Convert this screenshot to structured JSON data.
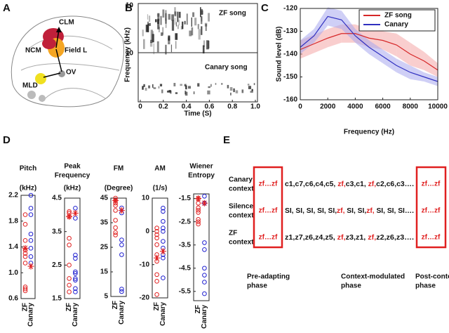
{
  "panel_labels": [
    "A",
    "B",
    "C",
    "D",
    "E"
  ],
  "anatomy": {
    "labels": [
      "CLM",
      "NCM",
      "Field L",
      "OV",
      "MLD"
    ]
  },
  "spectrogram": {
    "ylabel": "Frequency (kHz)",
    "xlabel": "Time (S)",
    "y_tick_labels": [
      "10",
      "10"
    ],
    "xlim": [
      0,
      1
    ],
    "xticks": [
      0,
      0.2,
      0.4,
      0.6,
      0.8,
      {
        "value": 1,
        "label": "1.0"
      }
    ],
    "annotations": [
      "ZF song",
      "Canary song"
    ]
  },
  "chart_data": [
    {
      "type": "line",
      "xlabel": "Frequency (Hz)",
      "ylabel": "Sound level (dB)",
      "x": [
        0,
        1000,
        2000,
        3000,
        4000,
        5000,
        6000,
        7000,
        8000,
        9000,
        10000
      ],
      "xlim": [
        0,
        10000
      ],
      "xticks": [
        0,
        2000,
        4000,
        6000,
        8000,
        10000
      ],
      "ylim": [
        -160,
        -120
      ],
      "yticks": [
        -160,
        -150,
        -140,
        -130,
        -120
      ],
      "legend": "upper right",
      "series": [
        {
          "name": "ZF song",
          "color": "#d62728",
          "band_color": "#f4a6a6",
          "values": [
            -138,
            -135.5,
            -133,
            -131,
            -131,
            -133,
            -134,
            -136,
            -140,
            -143,
            -147
          ],
          "error": [
            4,
            4,
            4,
            4,
            4,
            4,
            4,
            5,
            5,
            4,
            3
          ]
        },
        {
          "name": "Canary",
          "color": "#3030c0",
          "band_color": "#a8a8ee",
          "values": [
            -137,
            -132,
            -123.5,
            -125,
            -132,
            -137,
            -141,
            -145,
            -148,
            -150,
            -152
          ],
          "error": [
            3,
            3,
            4,
            4,
            3,
            3,
            3,
            3,
            3,
            2,
            2
          ]
        }
      ]
    },
    {
      "type": "strip",
      "title": [
        "Pitch"
      ],
      "unit": "(kHz)",
      "categories": [
        "ZF",
        "Canary"
      ],
      "ylim": [
        0.6,
        2.2
      ],
      "yticks": [
        0.6,
        {
          "value": 1,
          "label": "1.0"
        },
        1.4,
        1.8,
        2.2
      ],
      "series": [
        {
          "color": "#e02020",
          "values": [
            1.9,
            1.75,
            1.5,
            1.35,
            1.3,
            1.25,
            1.15,
            0.78,
            0.75,
            0.72
          ]
        },
        {
          "color": "#2020d0",
          "values": [
            2.2,
            2.0,
            1.9,
            1.6,
            1.5,
            1.38,
            1.25,
            1.15
          ]
        }
      ],
      "means": [
        1.38,
        1.1
      ],
      "means_color": "#e02020"
    },
    {
      "type": "strip",
      "title": [
        "Peak",
        "Frequency"
      ],
      "unit": "(kHz)",
      "categories": [
        "ZF",
        "Canary"
      ],
      "ylim": [
        1.5,
        4.5
      ],
      "yticks": [
        1.5,
        2.5,
        3.5,
        4.5
      ],
      "series": [
        {
          "color": "#e02020",
          "values": [
            4.1,
            4.05,
            3.95,
            3.3,
            3.1,
            2.5,
            2.1,
            1.9,
            1.7
          ]
        },
        {
          "color": "#2020d0",
          "values": [
            4.2,
            3.9,
            2.8,
            2.7,
            2.3,
            2.25,
            2.1,
            2.05,
            1.8,
            1.7
          ]
        }
      ],
      "means": [
        3.95,
        4.05
      ],
      "means_color": "#e02020"
    },
    {
      "type": "strip",
      "title": [
        "FM"
      ],
      "unit": "(Degree)",
      "categories": [
        "ZF",
        "Canary"
      ],
      "ylim": [
        5,
        45
      ],
      "yticks": [
        5,
        15,
        25,
        35,
        45
      ],
      "series": [
        {
          "color": "#e02020",
          "values": [
            45,
            44,
            43,
            42,
            40,
            36,
            33,
            31,
            30
          ]
        },
        {
          "color": "#2020d0",
          "values": [
            41,
            39,
            28,
            26,
            22,
            8,
            7
          ]
        }
      ],
      "means": [
        44,
        40
      ],
      "means_color": "#e02020"
    },
    {
      "type": "strip",
      "title": [
        "AM"
      ],
      "unit": "(1/s)",
      "categories": [
        "ZF",
        "Canary"
      ],
      "ylim": [
        -20,
        10
      ],
      "yticks": [
        -20,
        -10,
        0,
        10
      ],
      "series": [
        {
          "color": "#e02020",
          "values": [
            1,
            0,
            -1,
            -2,
            -4,
            -7,
            -9,
            -13,
            -15,
            -19
          ]
        },
        {
          "color": "#2020d0",
          "values": [
            7,
            6,
            3,
            1,
            0,
            -3,
            -5,
            -7,
            -8,
            -14
          ]
        }
      ],
      "means": [
        -8,
        -6
      ],
      "means_color": "#e02020"
    },
    {
      "type": "strip",
      "title": [
        "Wiener",
        "Entropy"
      ],
      "categories": [
        "ZF",
        "Canary"
      ],
      "ylim": [
        -5.9,
        -1.3
      ],
      "yticks": [
        -5.5,
        -4.5,
        -3.5,
        -2.5,
        -1.5
      ],
      "series": [
        {
          "color": "#e02020",
          "values": [
            -1.5,
            -1.7,
            -1.9,
            -2.0,
            -2.1,
            -2.4,
            -2.6,
            -2.5
          ]
        },
        {
          "color": "#2020d0",
          "values": [
            -1.4,
            -1.7,
            -3.4,
            -3.7,
            -4.5,
            -4.8,
            -5.1,
            -5.6
          ]
        }
      ],
      "means": [
        -1.5,
        -1.7
      ],
      "means_color": "#e02020"
    }
  ],
  "context_design": {
    "highlight_color": "#e02020",
    "rows": [
      {
        "label": [
          "Canary",
          "context"
        ],
        "pre": "zf…zf",
        "post": "zf…zf",
        "sequence": [
          {
            "text": "c1,c7,c6,c4,c5, ",
            "highlight": false
          },
          {
            "text": "zf,",
            "highlight": true
          },
          {
            "text": "c3,c1, ",
            "highlight": false
          },
          {
            "text": "zf,",
            "highlight": true
          },
          {
            "text": "c2,c6,c3….",
            "highlight": false
          }
        ]
      },
      {
        "label": [
          "Silence",
          "context"
        ],
        "pre": "zf…zf",
        "post": "zf…zf",
        "sequence": [
          {
            "text": "SI, SI, SI, SI, SI,",
            "highlight": false
          },
          {
            "text": "zf,",
            "highlight": true
          },
          {
            "text": " SI, SI,",
            "highlight": false
          },
          {
            "text": "zf,",
            "highlight": true
          },
          {
            "text": " SI, SI, SI….",
            "highlight": false
          }
        ]
      },
      {
        "label": [
          "ZF",
          "context"
        ],
        "pre": "zf…zf",
        "post": "zf…zf",
        "sequence": [
          {
            "text": "z1,z7,z6,z4,z5, ",
            "highlight": false
          },
          {
            "text": "zf,",
            "highlight": true
          },
          {
            "text": "z3,z1, ",
            "highlight": false
          },
          {
            "text": "zf,",
            "highlight": true
          },
          {
            "text": "z2,z6,z3….",
            "highlight": false
          }
        ]
      }
    ],
    "phases": [
      [
        "Pre-adapting",
        "phase"
      ],
      [
        "Context-modulated",
        "phase"
      ],
      [
        "Post-context",
        "phase"
      ]
    ]
  }
}
